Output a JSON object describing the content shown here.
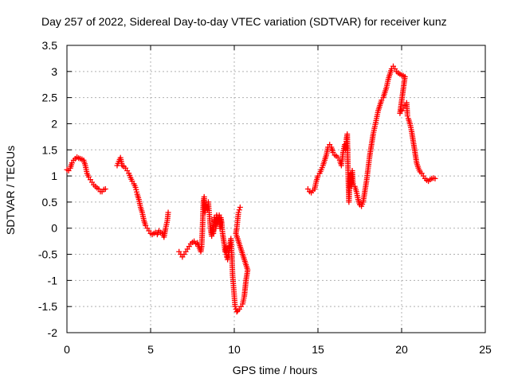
{
  "chart_data": {
    "type": "scatter",
    "title": "Day 257 of 2022, Sidereal Day-to-day VTEC variation (SDTVAR) for receiver kunz",
    "xlabel": "GPS time / hours",
    "ylabel": "SDTVAR / TECUs",
    "xlim": [
      0,
      25
    ],
    "ylim": [
      -2,
      3.5
    ],
    "xticks": [
      0,
      5,
      10,
      15,
      20,
      25
    ],
    "yticks": [
      3.5,
      3,
      2.5,
      2,
      1.5,
      1,
      0.5,
      0,
      -0.5,
      -1,
      -1.5,
      -2
    ],
    "xtick_labels": [
      "0",
      "5",
      "10",
      "15",
      "20",
      "25"
    ],
    "ytick_labels": [
      "3.5",
      "3",
      "2.5",
      "2",
      "1.5",
      "1",
      "0.5",
      "0",
      "-0.5",
      "-1",
      "-1.5",
      "-2"
    ],
    "grid": true,
    "marker": "+",
    "series": [
      {
        "name": "SDTVAR",
        "color": "#ff0000",
        "segments": [
          [
            [
              0.0,
              1.12
            ],
            [
              0.1,
              1.1
            ],
            [
              0.2,
              1.15
            ],
            [
              0.3,
              1.25
            ],
            [
              0.4,
              1.3
            ],
            [
              0.5,
              1.33
            ],
            [
              0.6,
              1.36
            ],
            [
              0.7,
              1.34
            ],
            [
              0.8,
              1.33
            ],
            [
              0.9,
              1.32
            ],
            [
              1.0,
              1.3
            ],
            [
              1.1,
              1.2
            ],
            [
              1.2,
              1.05
            ],
            [
              1.3,
              0.98
            ],
            [
              1.4,
              0.93
            ],
            [
              1.5,
              0.88
            ],
            [
              1.6,
              0.83
            ],
            [
              1.7,
              0.8
            ],
            [
              1.8,
              0.77
            ],
            [
              1.9,
              0.75
            ],
            [
              2.0,
              0.7
            ],
            [
              2.1,
              0.7
            ],
            [
              2.2,
              0.74
            ],
            [
              2.3,
              0.75
            ]
          ],
          [
            [
              3.0,
              1.2
            ],
            [
              3.1,
              1.28
            ],
            [
              3.2,
              1.35
            ],
            [
              3.3,
              1.2
            ],
            [
              3.4,
              1.18
            ],
            [
              3.5,
              1.15
            ],
            [
              3.6,
              1.1
            ],
            [
              3.7,
              1.05
            ],
            [
              3.8,
              0.97
            ],
            [
              3.9,
              0.9
            ],
            [
              4.0,
              0.85
            ],
            [
              4.1,
              0.78
            ],
            [
              4.2,
              0.65
            ],
            [
              4.3,
              0.55
            ],
            [
              4.4,
              0.4
            ],
            [
              4.5,
              0.3
            ],
            [
              4.6,
              0.15
            ],
            [
              4.7,
              0.05
            ],
            [
              4.8,
              0.0
            ],
            [
              4.9,
              -0.05
            ],
            [
              5.0,
              -0.1
            ],
            [
              5.1,
              -0.12
            ],
            [
              5.2,
              -0.1
            ],
            [
              5.3,
              -0.08
            ],
            [
              5.4,
              -0.12
            ],
            [
              5.5,
              -0.05
            ],
            [
              5.6,
              -0.08
            ],
            [
              5.7,
              -0.1
            ],
            [
              5.8,
              -0.17
            ],
            [
              5.9,
              0.0
            ],
            [
              6.0,
              0.15
            ],
            [
              6.05,
              0.3
            ]
          ],
          [
            [
              6.7,
              -0.45
            ],
            [
              6.8,
              -0.5
            ],
            [
              6.9,
              -0.55
            ],
            [
              7.0,
              -0.5
            ],
            [
              7.1,
              -0.45
            ],
            [
              7.2,
              -0.4
            ],
            [
              7.3,
              -0.35
            ],
            [
              7.4,
              -0.3
            ],
            [
              7.5,
              -0.27
            ],
            [
              7.6,
              -0.25
            ],
            [
              7.7,
              -0.3
            ],
            [
              7.8,
              -0.28
            ],
            [
              8.0,
              -0.45
            ],
            [
              8.05,
              -0.35
            ],
            [
              8.1,
              0.0
            ],
            [
              8.15,
              0.5
            ],
            [
              8.2,
              0.6
            ],
            [
              8.25,
              0.3
            ],
            [
              8.3,
              0.45
            ],
            [
              8.35,
              0.4
            ],
            [
              8.4,
              0.35
            ],
            [
              8.45,
              0.5
            ],
            [
              8.5,
              0.3
            ],
            [
              8.55,
              0.1
            ],
            [
              8.6,
              -0.05
            ],
            [
              8.65,
              -0.15
            ],
            [
              8.7,
              0.0
            ],
            [
              8.75,
              -0.1
            ],
            [
              8.8,
              0.2
            ],
            [
              8.85,
              0.15
            ],
            [
              8.9,
              0.0
            ],
            [
              8.95,
              0.25
            ],
            [
              9.0,
              0.1
            ],
            [
              9.05,
              0.2
            ],
            [
              9.1,
              0.25
            ],
            [
              9.15,
              0.0
            ],
            [
              9.2,
              0.2
            ],
            [
              9.25,
              0.1
            ],
            [
              9.3,
              -0.1
            ],
            [
              9.35,
              -0.2
            ],
            [
              9.4,
              -0.3
            ],
            [
              9.45,
              -0.45
            ],
            [
              9.5,
              -0.35
            ],
            [
              9.55,
              -0.55
            ],
            [
              9.6,
              -0.6
            ],
            [
              9.65,
              -0.5
            ],
            [
              9.7,
              -0.4
            ],
            [
              9.75,
              -0.3
            ],
            [
              9.8,
              -0.2
            ],
            [
              9.85,
              -0.5
            ],
            [
              9.9,
              -0.9
            ],
            [
              9.95,
              -1.1
            ],
            [
              10.0,
              -1.3
            ],
            [
              10.05,
              -1.5
            ],
            [
              10.1,
              -1.55
            ],
            [
              10.15,
              -1.6
            ],
            [
              10.2,
              -1.58
            ],
            [
              10.3,
              -1.55
            ],
            [
              10.4,
              -1.5
            ],
            [
              10.5,
              -1.45
            ],
            [
              10.6,
              -1.3
            ],
            [
              10.7,
              -1.0
            ],
            [
              10.8,
              -0.8
            ],
            [
              10.1,
              -0.1
            ],
            [
              10.15,
              0.0
            ],
            [
              10.2,
              0.15
            ],
            [
              10.25,
              0.3
            ],
            [
              10.3,
              0.35
            ],
            [
              10.35,
              0.4
            ]
          ],
          [
            [
              14.4,
              0.75
            ],
            [
              14.5,
              0.7
            ],
            [
              14.6,
              0.68
            ],
            [
              14.7,
              0.72
            ],
            [
              14.8,
              0.75
            ],
            [
              14.9,
              0.9
            ],
            [
              15.0,
              1.0
            ],
            [
              15.1,
              1.05
            ],
            [
              15.2,
              1.12
            ],
            [
              15.3,
              1.2
            ],
            [
              15.4,
              1.3
            ],
            [
              15.5,
              1.4
            ],
            [
              15.6,
              1.55
            ],
            [
              15.7,
              1.6
            ],
            [
              15.8,
              1.55
            ],
            [
              15.9,
              1.45
            ],
            [
              16.0,
              1.4
            ],
            [
              16.1,
              1.38
            ],
            [
              16.2,
              1.35
            ],
            [
              16.3,
              1.3
            ],
            [
              16.4,
              1.2
            ],
            [
              16.5,
              1.45
            ],
            [
              16.6,
              1.6
            ],
            [
              16.65,
              1.5
            ],
            [
              16.7,
              1.7
            ],
            [
              16.75,
              1.8
            ],
            [
              16.8,
              1.1
            ],
            [
              16.85,
              0.5
            ],
            [
              16.9,
              0.9
            ],
            [
              16.95,
              1.05
            ],
            [
              17.0,
              0.8
            ],
            [
              17.05,
              1.1
            ],
            [
              17.1,
              0.85
            ],
            [
              17.2,
              0.8
            ],
            [
              17.3,
              0.7
            ],
            [
              17.4,
              0.55
            ],
            [
              17.5,
              0.45
            ],
            [
              17.6,
              0.42
            ],
            [
              17.7,
              0.5
            ],
            [
              17.8,
              0.7
            ],
            [
              17.9,
              0.9
            ],
            [
              18.0,
              1.15
            ],
            [
              18.1,
              1.4
            ],
            [
              18.2,
              1.6
            ],
            [
              18.3,
              1.8
            ],
            [
              18.4,
              1.95
            ],
            [
              18.5,
              2.1
            ],
            [
              18.6,
              2.25
            ],
            [
              18.7,
              2.35
            ],
            [
              18.8,
              2.45
            ],
            [
              18.9,
              2.5
            ],
            [
              19.0,
              2.6
            ],
            [
              19.1,
              2.7
            ],
            [
              19.2,
              2.85
            ],
            [
              19.3,
              2.95
            ],
            [
              19.4,
              3.05
            ],
            [
              19.5,
              3.1
            ],
            [
              19.6,
              3.05
            ],
            [
              19.7,
              3.0
            ],
            [
              19.8,
              2.97
            ],
            [
              19.9,
              2.95
            ],
            [
              20.0,
              2.93
            ],
            [
              20.1,
              2.92
            ],
            [
              20.2,
              2.9
            ],
            [
              19.9,
              2.2
            ],
            [
              20.0,
              2.25
            ],
            [
              20.1,
              2.3
            ],
            [
              20.2,
              2.35
            ],
            [
              20.3,
              2.4
            ],
            [
              20.35,
              2.15
            ],
            [
              20.4,
              2.1
            ],
            [
              20.5,
              2.0
            ],
            [
              20.6,
              1.85
            ],
            [
              20.7,
              1.65
            ],
            [
              20.8,
              1.45
            ],
            [
              20.9,
              1.25
            ],
            [
              21.0,
              1.15
            ],
            [
              21.1,
              1.08
            ],
            [
              21.2,
              1.05
            ],
            [
              21.3,
              1.0
            ],
            [
              21.4,
              0.95
            ],
            [
              21.5,
              0.92
            ],
            [
              21.6,
              0.9
            ],
            [
              21.7,
              0.93
            ],
            [
              21.8,
              0.95
            ],
            [
              21.9,
              0.96
            ],
            [
              22.0,
              0.95
            ]
          ]
        ]
      }
    ]
  }
}
